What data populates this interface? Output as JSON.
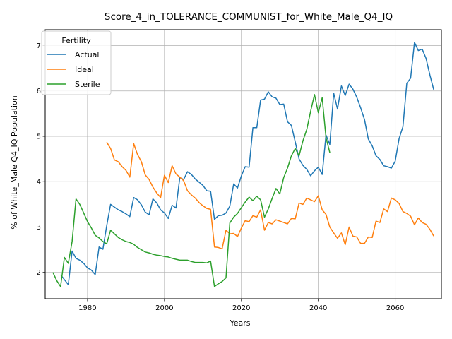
{
  "chart_data": {
    "type": "line",
    "title": "Score_4_in_TOLERANCE_COMMUNIST_for_White_Male_Q4_IQ",
    "xlabel": "Years",
    "ylabel": "% of White_Male Q4_IQ Population",
    "xlim": [
      1969,
      2072
    ],
    "ylim": [
      1.42,
      7.35
    ],
    "xticks": [
      1980,
      2000,
      2020,
      2040,
      2060
    ],
    "yticks": [
      2,
      3,
      4,
      5,
      6,
      7
    ],
    "grid": true,
    "legend": {
      "title": "Fertility",
      "placement": "upper left"
    },
    "colors": {
      "Actual": "#1f77b4",
      "Ideal": "#ff7f0e",
      "Sterile": "#2ca02c"
    },
    "series": [
      {
        "name": "Actual",
        "x": [
          1973,
          1975,
          1976,
          1977,
          1978,
          1979,
          1980,
          1981,
          1982,
          1983,
          1984,
          1985,
          1986,
          1987,
          1988,
          1989,
          1990,
          1991,
          1992,
          1993,
          1994,
          1995,
          1996,
          1997,
          1998,
          1999,
          2000,
          2001,
          2002,
          2003,
          2004,
          2005,
          2006,
          2007,
          2008,
          2009,
          2010,
          2011,
          2012,
          2013,
          2014,
          2015,
          2016,
          2017,
          2018,
          2019,
          2020,
          2021,
          2022,
          2023,
          2024,
          2025,
          2026,
          2027,
          2028,
          2029,
          2030,
          2031,
          2032,
          2033,
          2034,
          2035,
          2036,
          2037,
          2038,
          2039,
          2040,
          2041,
          2042,
          2043,
          2044,
          2045,
          2046,
          2047,
          2048,
          2049,
          2050,
          2051,
          2052,
          2053,
          2054,
          2055,
          2056,
          2057,
          2058,
          2059,
          2060,
          2061,
          2062,
          2063,
          2064,
          2065,
          2066,
          2067,
          2068,
          2069,
          2070
        ],
        "values": [
          1.95,
          1.73,
          2.47,
          2.31,
          2.27,
          2.2,
          2.1,
          2.05,
          1.95,
          2.56,
          2.51,
          3.03,
          3.5,
          3.44,
          3.38,
          3.34,
          3.29,
          3.23,
          3.65,
          3.6,
          3.49,
          3.33,
          3.27,
          3.62,
          3.53,
          3.38,
          3.31,
          3.19,
          3.48,
          3.42,
          4.09,
          4.05,
          4.22,
          4.16,
          4.06,
          3.99,
          3.92,
          3.8,
          3.79,
          3.17,
          3.25,
          3.26,
          3.31,
          3.46,
          3.95,
          3.86,
          4.13,
          4.33,
          4.32,
          5.19,
          5.19,
          5.8,
          5.82,
          5.98,
          5.87,
          5.84,
          5.7,
          5.71,
          5.32,
          5.24,
          4.88,
          4.5,
          4.36,
          4.27,
          4.13,
          4.24,
          4.32,
          4.16,
          5.03,
          4.82,
          5.95,
          5.6,
          6.11,
          5.9,
          6.15,
          6.04,
          5.86,
          5.63,
          5.37,
          4.94,
          4.79,
          4.57,
          4.49,
          4.35,
          4.33,
          4.3,
          4.45,
          4.95,
          5.21,
          6.17,
          6.28,
          7.07,
          6.89,
          6.92,
          6.72,
          6.35,
          6.03
        ]
      },
      {
        "name": "Ideal",
        "x": [
          1985,
          1986,
          1987,
          1988,
          1989,
          1990,
          1991,
          1992,
          1993,
          1994,
          1995,
          1996,
          1997,
          1998,
          1999,
          2000,
          2001,
          2002,
          2003,
          2004,
          2005,
          2006,
          2007,
          2008,
          2009,
          2010,
          2011,
          2012,
          2013,
          2014,
          2015,
          2016,
          2017,
          2018,
          2019,
          2020,
          2021,
          2022,
          2023,
          2024,
          2025,
          2026,
          2027,
          2028,
          2029,
          2030,
          2031,
          2032,
          2033,
          2034,
          2035,
          2036,
          2037,
          2038,
          2039,
          2040,
          2041,
          2042,
          2043,
          2044,
          2045,
          2046,
          2047,
          2048,
          2049,
          2050,
          2051,
          2052,
          2053,
          2054,
          2055,
          2056,
          2057,
          2058,
          2059,
          2060,
          2061,
          2062,
          2063,
          2064,
          2065,
          2066,
          2067,
          2068,
          2069,
          2070
        ],
        "values": [
          4.87,
          4.73,
          4.48,
          4.44,
          4.33,
          4.25,
          4.1,
          4.84,
          4.6,
          4.44,
          4.15,
          4.05,
          3.88,
          3.75,
          3.65,
          4.14,
          3.98,
          4.35,
          4.17,
          4.1,
          4.02,
          3.8,
          3.71,
          3.64,
          3.54,
          3.47,
          3.41,
          3.39,
          2.56,
          2.55,
          2.52,
          2.93,
          2.85,
          2.86,
          2.79,
          2.98,
          3.14,
          3.12,
          3.25,
          3.22,
          3.38,
          2.93,
          3.1,
          3.07,
          3.16,
          3.13,
          3.1,
          3.07,
          3.19,
          3.18,
          3.53,
          3.5,
          3.64,
          3.6,
          3.56,
          3.69,
          3.38,
          3.28,
          3.0,
          2.87,
          2.75,
          2.87,
          2.61,
          3.0,
          2.8,
          2.78,
          2.64,
          2.64,
          2.78,
          2.77,
          3.13,
          3.1,
          3.4,
          3.34,
          3.64,
          3.6,
          3.52,
          3.34,
          3.3,
          3.24,
          3.05,
          3.2,
          3.1,
          3.06,
          2.95,
          2.8
        ]
      },
      {
        "name": "Sterile",
        "x": [
          1971,
          1972,
          1973,
          1974,
          1975,
          1976,
          1977,
          1978,
          1979,
          1980,
          1981,
          1982,
          1983,
          1984,
          1985,
          1986,
          1987,
          1988,
          1989,
          1990,
          1991,
          1992,
          1993,
          1994,
          1995,
          1996,
          1997,
          1998,
          1999,
          2000,
          2001,
          2002,
          2003,
          2004,
          2005,
          2006,
          2007,
          2008,
          2009,
          2010,
          2011,
          2012,
          2013,
          2014,
          2015,
          2016,
          2017,
          2018,
          2019,
          2020,
          2021,
          2022,
          2023,
          2024,
          2025,
          2026,
          2027,
          2028,
          2029,
          2030,
          2031,
          2032,
          2033,
          2034,
          2035,
          2036,
          2037,
          2038,
          2039,
          2040,
          2041,
          2042,
          2043
        ],
        "values": [
          2.0,
          1.82,
          1.69,
          2.33,
          2.2,
          2.68,
          3.62,
          3.5,
          3.31,
          3.12,
          2.98,
          2.82,
          2.76,
          2.68,
          2.63,
          2.93,
          2.85,
          2.77,
          2.72,
          2.68,
          2.66,
          2.62,
          2.55,
          2.5,
          2.45,
          2.43,
          2.4,
          2.38,
          2.37,
          2.35,
          2.34,
          2.31,
          2.29,
          2.27,
          2.27,
          2.27,
          2.24,
          2.22,
          2.22,
          2.22,
          2.21,
          2.25,
          1.69,
          1.75,
          1.8,
          1.88,
          3.09,
          3.22,
          3.3,
          3.43,
          3.55,
          3.66,
          3.58,
          3.68,
          3.6,
          3.22,
          3.4,
          3.63,
          3.85,
          3.73,
          4.09,
          4.3,
          4.57,
          4.73,
          4.57,
          4.9,
          5.15,
          5.55,
          5.92,
          5.52,
          5.85,
          4.97,
          4.64
        ]
      }
    ]
  }
}
